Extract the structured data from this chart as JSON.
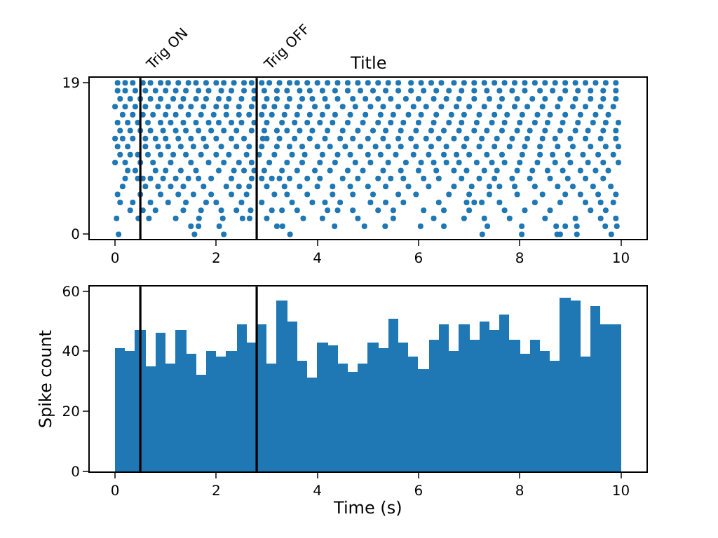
{
  "chart_data": [
    {
      "type": "scatter",
      "title": "Title",
      "marker": "circle",
      "xlim": [
        -0.5,
        10.5
      ],
      "xticks": [
        0,
        2,
        4,
        6,
        8,
        10
      ],
      "ylim": [
        -0.6,
        19.6
      ],
      "yticks": [
        0,
        19
      ],
      "ref_lines": [
        {
          "axis": "x",
          "value": 0.5,
          "label": "Trig ON",
          "color": "#000000"
        },
        {
          "axis": "x",
          "value": 2.8,
          "label": "Trig OFF",
          "color": "#000000"
        }
      ],
      "series": [
        {
          "color": "#1f77b4",
          "x": [
            0.07,
            1.57,
            2.15,
            3.46,
            7.26,
            8.04,
            8.74,
            8.8,
            9.13,
            9.81
          ],
          "values": [
            0,
            0,
            0,
            0,
            0,
            0,
            0,
            0,
            0,
            0
          ]
        },
        {
          "color": "#1f77b4",
          "x": [
            1.5,
            1.65,
            2.06,
            3.2,
            3.31,
            4.34,
            4.93,
            5.34,
            6.04,
            6.5,
            7.36,
            8.04,
            8.72,
            8.9,
            9.13,
            9.69,
            9.92
          ],
          "values": [
            1,
            1,
            1,
            1,
            1,
            1,
            1,
            1,
            1,
            1,
            1,
            1,
            1,
            1,
            1,
            1,
            1
          ]
        },
        {
          "color": "#1f77b4",
          "x": [
            0.03,
            0.46,
            0.67,
            1.2,
            1.66,
            2.13,
            2.52,
            2.66,
            3.0,
            3.72,
            4.1,
            4.8,
            5.5,
            6.3,
            6.9,
            7.3,
            7.8,
            8.5,
            9.1,
            9.6,
            9.9
          ],
          "values": [
            2,
            2,
            2,
            2,
            2,
            2,
            2,
            2,
            2,
            2,
            2,
            2,
            2,
            2,
            2,
            2,
            2,
            2,
            2,
            2,
            2
          ]
        },
        {
          "color": "#1f77b4",
          "x": [
            0.3,
            0.55,
            0.8,
            1.35,
            1.7,
            2.1,
            2.4,
            2.68,
            3.1,
            3.3,
            3.6,
            4.2,
            4.4,
            4.7,
            5.2,
            5.5,
            6.1,
            6.5,
            7.0,
            7.7,
            8.1,
            8.6,
            9.4,
            9.7
          ],
          "values": [
            3,
            3,
            3,
            3,
            3,
            3,
            3,
            3,
            3,
            3,
            3,
            3,
            3,
            3,
            3,
            3,
            3,
            3,
            3,
            3,
            3,
            3,
            3,
            3
          ]
        },
        {
          "color": "#1f77b4",
          "x": [
            0.1,
            0.35,
            0.7,
            1.05,
            1.4,
            1.8,
            2.0,
            2.5,
            2.9,
            3.5,
            3.9,
            4.15,
            4.45,
            5.05,
            5.35,
            5.7,
            6.4,
            6.95,
            7.1,
            7.25,
            7.6,
            8.3,
            8.8,
            9.3,
            9.6,
            9.85
          ],
          "values": [
            4,
            4,
            4,
            4,
            4,
            4,
            4,
            4,
            4,
            4,
            4,
            4,
            4,
            4,
            4,
            4,
            4,
            4,
            4,
            4,
            4,
            4,
            4,
            4,
            4,
            4
          ]
        },
        {
          "color": "#1f77b4",
          "x": [
            0.05,
            0.5,
            0.9,
            1.25,
            1.55,
            1.9,
            2.3,
            2.6,
            3.15,
            3.4,
            3.8,
            4.3,
            4.7,
            5.1,
            5.6,
            5.95,
            6.6,
            7.0,
            7.4,
            7.95,
            8.45,
            8.9,
            9.2,
            9.55,
            9.9
          ],
          "values": [
            5,
            5,
            5,
            5,
            5,
            5,
            5,
            5,
            5,
            5,
            5,
            5,
            5,
            5,
            5,
            5,
            5,
            5,
            5,
            5,
            5,
            5,
            5,
            5,
            5
          ]
        },
        {
          "color": "#1f77b4",
          "x": [
            0.15,
            0.6,
            0.85,
            1.1,
            1.35,
            1.75,
            2.2,
            2.45,
            2.65,
            3.0,
            3.35,
            3.65,
            4.0,
            4.3,
            4.65,
            5.0,
            5.35,
            5.8,
            6.2,
            6.7,
            7.05,
            7.4,
            7.6,
            7.9,
            8.3,
            8.75,
            9.05,
            9.45,
            9.8
          ],
          "values": [
            6,
            6,
            6,
            6,
            6,
            6,
            6,
            6,
            6,
            6,
            6,
            6,
            6,
            6,
            6,
            6,
            6,
            6,
            6,
            6,
            6,
            6,
            6,
            6,
            6,
            6,
            6,
            6,
            6
          ]
        },
        {
          "color": "#1f77b4",
          "x": [
            0.2,
            0.45,
            0.55,
            0.7,
            0.95,
            1.2,
            1.45,
            1.65,
            1.9,
            2.3,
            2.7,
            2.9,
            3.1,
            3.25,
            3.45,
            3.8,
            4.05,
            4.5,
            4.8,
            5.2,
            5.45,
            5.7,
            6.1,
            6.4,
            6.85,
            7.2,
            7.5,
            7.85,
            8.2,
            8.6,
            8.95,
            9.3,
            9.65
          ],
          "values": [
            7,
            7,
            7,
            7,
            7,
            7,
            7,
            7,
            7,
            7,
            7,
            7,
            7,
            7,
            7,
            7,
            7,
            7,
            7,
            7,
            7,
            7,
            7,
            7,
            7,
            7,
            7,
            7,
            7,
            7,
            7,
            7,
            7
          ]
        },
        {
          "color": "#1f77b4",
          "x": [
            0.25,
            0.4,
            0.8,
            1.0,
            1.3,
            1.6,
            2.05,
            2.35,
            2.55,
            2.75,
            2.95,
            3.3,
            3.6,
            3.95,
            4.25,
            4.6,
            4.9,
            5.3,
            5.65,
            6.0,
            6.35,
            6.7,
            6.95,
            7.3,
            7.55,
            7.95,
            8.25,
            8.55,
            8.85,
            9.2,
            9.5,
            9.75
          ],
          "values": [
            8,
            8,
            8,
            8,
            8,
            8,
            8,
            8,
            8,
            8,
            8,
            8,
            8,
            8,
            8,
            8,
            8,
            8,
            8,
            8,
            8,
            8,
            8,
            8,
            8,
            8,
            8,
            8,
            8,
            8,
            8,
            8
          ]
        },
        {
          "color": "#1f77b4",
          "x": [
            0.0,
            0.2,
            0.5,
            0.75,
            1.1,
            1.5,
            1.85,
            2.15,
            2.45,
            2.7,
            3.05,
            3.4,
            3.7,
            4.05,
            4.35,
            4.75,
            5.05,
            5.4,
            5.75,
            6.05,
            6.3,
            6.55,
            6.8,
            7.15,
            7.45,
            7.7,
            8.0,
            8.35,
            8.7,
            9.0,
            9.35,
            9.65,
            9.95
          ],
          "values": [
            9,
            9,
            9,
            9,
            9,
            9,
            9,
            9,
            9,
            9,
            9,
            9,
            9,
            9,
            9,
            9,
            9,
            9,
            9,
            9,
            9,
            9,
            9,
            9,
            9,
            9,
            9,
            9,
            9,
            9,
            9,
            9,
            9
          ]
        },
        {
          "color": "#1f77b4",
          "x": [
            0.1,
            0.3,
            0.45,
            0.65,
            0.9,
            1.15,
            1.4,
            1.7,
            2.0,
            2.25,
            2.6,
            2.85,
            3.15,
            3.5,
            3.75,
            4.1,
            4.4,
            4.65,
            5.0,
            5.25,
            5.55,
            5.9,
            6.2,
            6.5,
            6.75,
            7.0,
            7.35,
            7.65,
            8.05,
            8.4,
            8.65,
            8.95,
            9.25,
            9.55,
            9.85
          ],
          "values": [
            10,
            10,
            10,
            10,
            10,
            10,
            10,
            10,
            10,
            10,
            10,
            10,
            10,
            10,
            10,
            10,
            10,
            10,
            10,
            10,
            10,
            10,
            10,
            10,
            10,
            10,
            10,
            10,
            10,
            10,
            10,
            10,
            10,
            10,
            10
          ]
        },
        {
          "color": "#1f77b4",
          "x": [
            0.05,
            0.25,
            0.6,
            0.85,
            1.05,
            1.3,
            1.55,
            1.8,
            2.1,
            2.4,
            2.65,
            2.9,
            3.2,
            3.45,
            3.7,
            4.0,
            4.25,
            4.55,
            4.85,
            5.15,
            5.4,
            5.65,
            5.95,
            6.25,
            6.55,
            6.9,
            7.2,
            7.5,
            7.8,
            8.1,
            8.4,
            8.75,
            9.05,
            9.4,
            9.7,
            9.95
          ],
          "values": [
            11,
            11,
            11,
            11,
            11,
            11,
            11,
            11,
            11,
            11,
            11,
            11,
            11,
            11,
            11,
            11,
            11,
            11,
            11,
            11,
            11,
            11,
            11,
            11,
            11,
            11,
            11,
            11,
            11,
            11,
            11,
            11,
            11,
            11,
            11,
            11
          ]
        },
        {
          "color": "#1f77b4",
          "x": [
            0.0,
            0.15,
            0.35,
            0.6,
            0.8,
            1.0,
            1.25,
            1.5,
            1.75,
            2.0,
            2.3,
            2.55,
            2.92,
            3.0,
            3.25,
            3.55,
            3.85,
            4.15,
            4.45,
            4.7,
            5.0,
            5.3,
            5.6,
            5.85,
            6.15,
            6.4,
            6.7,
            6.95,
            7.25,
            7.55,
            7.85,
            8.15,
            8.45,
            8.7,
            9.0,
            9.3,
            9.6,
            9.9
          ],
          "values": [
            12,
            12,
            12,
            12,
            12,
            12,
            12,
            12,
            12,
            12,
            12,
            12,
            12,
            12,
            12,
            12,
            12,
            12,
            12,
            12,
            12,
            12,
            12,
            12,
            12,
            12,
            12,
            12,
            12,
            12,
            12,
            12,
            12,
            12,
            12,
            12,
            12,
            12
          ]
        },
        {
          "color": "#1f77b4",
          "x": [
            0.1,
            0.3,
            0.5,
            0.7,
            0.95,
            1.2,
            1.4,
            1.65,
            1.9,
            2.15,
            2.4,
            2.7,
            2.95,
            3.2,
            3.4,
            3.65,
            3.9,
            4.2,
            4.5,
            4.8,
            5.1,
            5.35,
            5.65,
            5.95,
            6.25,
            6.5,
            6.8,
            7.1,
            7.35,
            7.65,
            7.95,
            8.2,
            8.5,
            8.8,
            9.1,
            9.35,
            9.65,
            9.9
          ],
          "values": [
            13,
            13,
            13,
            13,
            13,
            13,
            13,
            13,
            13,
            13,
            13,
            13,
            13,
            13,
            13,
            13,
            13,
            13,
            13,
            13,
            13,
            13,
            13,
            13,
            13,
            13,
            13,
            13,
            13,
            13,
            13,
            13,
            13,
            13,
            13,
            13,
            13,
            13
          ]
        },
        {
          "color": "#1f77b4",
          "x": [
            0.05,
            0.25,
            0.45,
            0.65,
            0.9,
            1.1,
            1.35,
            1.6,
            1.85,
            2.05,
            2.3,
            2.5,
            2.75,
            3.0,
            3.3,
            3.55,
            3.8,
            4.05,
            4.3,
            4.6,
            4.9,
            5.2,
            5.45,
            5.7,
            6.0,
            6.3,
            6.6,
            6.85,
            7.15,
            7.45,
            7.7,
            8.0,
            8.3,
            8.55,
            8.85,
            9.15,
            9.45,
            9.7,
            9.95
          ],
          "values": [
            14,
            14,
            14,
            14,
            14,
            14,
            14,
            14,
            14,
            14,
            14,
            14,
            14,
            14,
            14,
            14,
            14,
            14,
            14,
            14,
            14,
            14,
            14,
            14,
            14,
            14,
            14,
            14,
            14,
            14,
            14,
            14,
            14,
            14,
            14,
            14,
            14,
            14,
            14
          ]
        },
        {
          "color": "#1f77b4",
          "x": [
            0.15,
            0.35,
            0.55,
            0.75,
            1.0,
            1.2,
            1.45,
            1.7,
            1.95,
            2.2,
            2.45,
            2.65,
            2.9,
            3.1,
            3.35,
            3.6,
            3.85,
            4.1,
            4.35,
            4.65,
            4.95,
            5.25,
            5.5,
            5.8,
            6.05,
            6.35,
            6.65,
            6.9,
            7.2,
            7.5,
            7.75,
            8.05,
            8.35,
            8.6,
            8.9,
            9.2,
            9.5,
            9.75
          ],
          "values": [
            15,
            15,
            15,
            15,
            15,
            15,
            15,
            15,
            15,
            15,
            15,
            15,
            15,
            15,
            15,
            15,
            15,
            15,
            15,
            15,
            15,
            15,
            15,
            15,
            15,
            15,
            15,
            15,
            15,
            15,
            15,
            15,
            15,
            15,
            15,
            15,
            15,
            15
          ]
        },
        {
          "color": "#1f77b4",
          "x": [
            0.0,
            0.2,
            0.4,
            0.6,
            0.85,
            1.05,
            1.3,
            1.5,
            1.75,
            2.0,
            2.2,
            2.45,
            2.7,
            2.95,
            3.15,
            3.4,
            3.65,
            3.95,
            4.2,
            4.5,
            4.75,
            5.05,
            5.3,
            5.6,
            5.9,
            6.15,
            6.45,
            6.75,
            7.0,
            7.3,
            7.6,
            7.9,
            8.15,
            8.45,
            8.75,
            9.05,
            9.3,
            9.6,
            9.85
          ],
          "values": [
            16,
            16,
            16,
            16,
            16,
            16,
            16,
            16,
            16,
            16,
            16,
            16,
            16,
            16,
            16,
            16,
            16,
            16,
            16,
            16,
            16,
            16,
            16,
            16,
            16,
            16,
            16,
            16,
            16,
            16,
            16,
            16,
            16,
            16,
            16,
            16,
            16,
            16,
            16
          ]
        },
        {
          "color": "#1f77b4",
          "x": [
            0.1,
            0.3,
            0.5,
            0.7,
            0.9,
            1.15,
            1.35,
            1.6,
            1.8,
            2.05,
            2.25,
            2.5,
            2.75,
            3.0,
            3.2,
            3.45,
            3.7,
            3.9,
            4.15,
            4.4,
            4.7,
            4.95,
            5.2,
            5.45,
            5.75,
            6.0,
            6.3,
            6.55,
            6.8,
            7.1,
            7.4,
            7.65,
            7.95,
            8.25,
            8.5,
            8.8,
            9.1,
            9.4,
            9.65,
            9.9
          ],
          "values": [
            17,
            17,
            17,
            17,
            17,
            17,
            17,
            17,
            17,
            17,
            17,
            17,
            17,
            17,
            17,
            17,
            17,
            17,
            17,
            17,
            17,
            17,
            17,
            17,
            17,
            17,
            17,
            17,
            17,
            17,
            17,
            17,
            17,
            17,
            17,
            17,
            17,
            17,
            17,
            17
          ]
        },
        {
          "color": "#1f77b4",
          "x": [
            0.05,
            0.2,
            0.4,
            0.6,
            0.8,
            1.0,
            1.2,
            1.4,
            1.65,
            1.85,
            2.1,
            2.3,
            2.55,
            2.75,
            2.95,
            3.2,
            3.4,
            3.65,
            3.85,
            4.1,
            4.35,
            4.6,
            4.85,
            5.1,
            5.35,
            5.6,
            5.85,
            6.1,
            6.35,
            6.6,
            6.85,
            7.1,
            7.35,
            7.6,
            7.85,
            8.1,
            8.4,
            8.65,
            8.9,
            9.15,
            9.4,
            9.65,
            9.9
          ],
          "values": [
            18,
            18,
            18,
            18,
            18,
            18,
            18,
            18,
            18,
            18,
            18,
            18,
            18,
            18,
            18,
            18,
            18,
            18,
            18,
            18,
            18,
            18,
            18,
            18,
            18,
            18,
            18,
            18,
            18,
            18,
            18,
            18,
            18,
            18,
            18,
            18,
            18,
            18,
            18,
            18,
            18,
            18,
            18
          ]
        },
        {
          "color": "#1f77b4",
          "x": [
            0.05,
            0.2,
            0.35,
            0.55,
            0.7,
            0.9,
            1.05,
            1.25,
            1.45,
            1.6,
            1.8,
            2.0,
            2.15,
            2.35,
            2.55,
            2.7,
            2.9,
            3.05,
            3.25,
            3.45,
            3.6,
            3.8,
            4.0,
            4.2,
            4.4,
            4.6,
            4.8,
            5.0,
            5.2,
            5.4,
            5.6,
            5.85,
            6.05,
            6.25,
            6.45,
            6.7,
            6.9,
            7.1,
            7.3,
            7.5,
            7.7,
            7.9,
            8.1,
            8.3,
            8.5,
            8.7,
            8.9,
            9.1,
            9.3,
            9.5,
            9.7,
            9.9
          ],
          "values": [
            19,
            19,
            19,
            19,
            19,
            19,
            19,
            19,
            19,
            19,
            19,
            19,
            19,
            19,
            19,
            19,
            19,
            19,
            19,
            19,
            19,
            19,
            19,
            19,
            19,
            19,
            19,
            19,
            19,
            19,
            19,
            19,
            19,
            19,
            19,
            19,
            19,
            19,
            19,
            19,
            19,
            19,
            19,
            19,
            19,
            19,
            19,
            19,
            19,
            19,
            19,
            19
          ]
        }
      ]
    },
    {
      "type": "histogram",
      "xlabel": "Time (s)",
      "ylabel": "Spike count",
      "color": "#1f77b4",
      "xlim": [
        -0.5,
        10.5
      ],
      "xticks": [
        0,
        2,
        4,
        6,
        8,
        10
      ],
      "ylim": [
        0,
        61.5
      ],
      "yticks": [
        0,
        20,
        40,
        60
      ],
      "bins": [
        0,
        0.2,
        0.4,
        0.6,
        0.8,
        1.0,
        1.2,
        1.4,
        1.6,
        1.8,
        2.0,
        2.2,
        2.4,
        2.6,
        2.8,
        3.0,
        3.2,
        3.4,
        3.6,
        3.8,
        4.0,
        4.2,
        4.4,
        4.6,
        4.8,
        5.0,
        5.2,
        5.4,
        5.6,
        5.8,
        6.0,
        6.2,
        6.4,
        6.6,
        6.8,
        7.0,
        7.2,
        7.4,
        7.6,
        7.8,
        8.0,
        8.2,
        8.4,
        8.6,
        8.8,
        9.0,
        9.2,
        9.4,
        9.6,
        9.8,
        10.0
      ],
      "values": [
        41,
        40,
        47,
        35,
        46,
        36,
        47,
        39,
        32,
        40,
        38,
        40,
        49,
        43,
        49,
        36,
        57,
        50,
        37,
        31,
        43,
        42,
        36,
        33,
        36,
        43,
        41,
        51,
        43,
        38,
        34,
        44,
        49,
        40,
        49,
        44,
        50,
        47,
        52,
        44,
        39,
        44,
        40,
        37,
        58,
        57,
        38,
        55,
        49,
        49
      ],
      "ref_lines": [
        {
          "axis": "x",
          "value": 0.5,
          "color": "#000000"
        },
        {
          "axis": "x",
          "value": 2.8,
          "color": "#000000"
        }
      ]
    }
  ]
}
